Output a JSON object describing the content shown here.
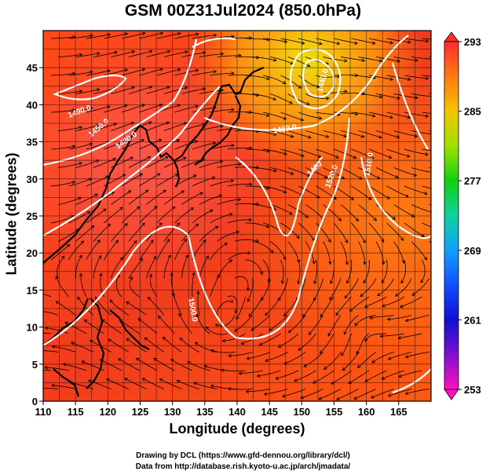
{
  "title": "GSM 00Z31Jul2024 (850.0hPa)",
  "xlabel": "Longitude (degrees)",
  "ylabel": "Latitude  (degrees)",
  "credits": {
    "line1": "Drawing by DCL (https://www.gfd-dennou.org/library/dcl/)",
    "line2": "Data from http://database.rish.kyoto-u.ac.jp/arch/jmadata/"
  },
  "x_ticks": [
    "110",
    "115",
    "120",
    "125",
    "130",
    "135",
    "140",
    "145",
    "150",
    "155",
    "160",
    "165"
  ],
  "y_ticks": [
    "0",
    "5",
    "10",
    "15",
    "20",
    "25",
    "30",
    "35",
    "40",
    "45"
  ],
  "colorbar": {
    "ticks": [
      "293",
      "285",
      "277",
      "269",
      "261",
      "253"
    ]
  },
  "contour_labels": [
    "1490.0",
    "1480.0",
    "1460.0",
    "1500.0",
    "1520.0",
    "1510.0",
    "1440.0",
    "1450.0",
    "1460",
    "1500",
    "1520",
    "1480"
  ],
  "chart_data": {
    "type": "heatmap",
    "title": "GSM 00Z31Jul2024 (850.0hPa)",
    "xlabel": "Longitude (degrees)",
    "ylabel": "Latitude  (degrees)",
    "xlim": [
      110,
      170
    ],
    "ylim": [
      0,
      50
    ],
    "colorbar_range": [
      253,
      293
    ],
    "colorbar_ticks": [
      293,
      285,
      277,
      269,
      261,
      253
    ],
    "grid": true,
    "overlays": [
      "streamlines",
      "height contours",
      "coastlines"
    ]
  }
}
